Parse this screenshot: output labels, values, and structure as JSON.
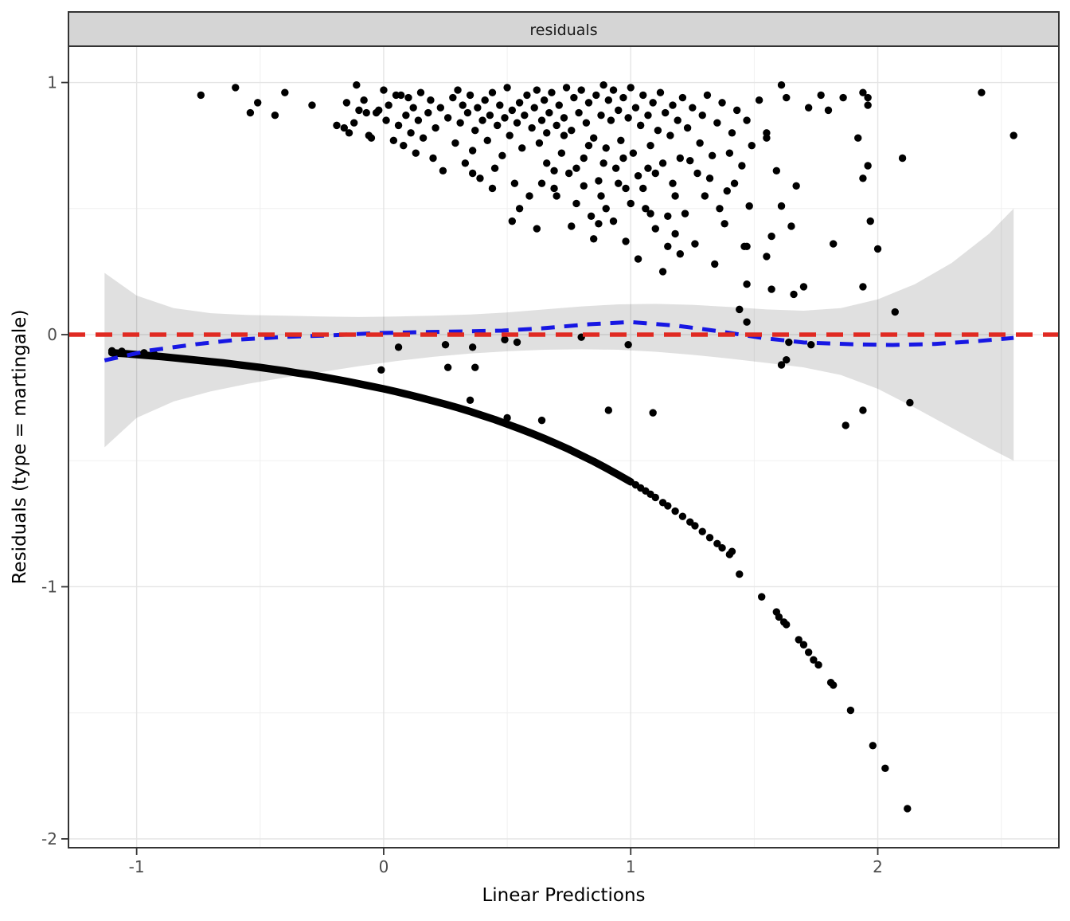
{
  "chart_data": {
    "type": "scatter",
    "strip_label": "residuals",
    "xlabel": "Linear Predictions",
    "ylabel": "Residuals (type = martingale)",
    "xlim": [
      -1.276,
      2.733
    ],
    "ylim": [
      -2.035,
      1.144
    ],
    "x_ticks": {
      "values": [
        -1,
        0,
        1,
        2
      ],
      "labels": [
        "-1",
        "0",
        "1",
        "2"
      ]
    },
    "y_ticks": {
      "values": [
        1,
        0,
        -1,
        -2
      ],
      "labels": [
        "1",
        "0",
        "-1",
        "-2"
      ]
    },
    "x_minor": [
      -0.5,
      0.5,
      1.5,
      2.5
    ],
    "y_minor": [
      0.5,
      -0.5,
      -1.5
    ],
    "grid": true,
    "legend_position": "none",
    "colors": {
      "reference": "#E02A22",
      "smooth": "#1717E3",
      "points": "#000000",
      "ribbon": "rgba(0,0,0,0.12)",
      "strip_bg": "#D5D5D5",
      "panel_border": "#333333",
      "grid_major": "#E4E4E4",
      "grid_minor": "#F0F0F0",
      "tick_label": "#4D4D4D"
    },
    "reference_line": {
      "y": 0,
      "style": "dashed"
    },
    "smooth_line": {
      "style": "dashed",
      "points": [
        [
          -1.13,
          -0.102
        ],
        [
          -0.95,
          -0.063
        ],
        [
          -0.76,
          -0.038
        ],
        [
          -0.58,
          -0.019
        ],
        [
          -0.4,
          -0.009
        ],
        [
          -0.22,
          -0.003
        ],
        [
          -0.03,
          0.006
        ],
        [
          0.15,
          0.01
        ],
        [
          0.33,
          0.013
        ],
        [
          0.48,
          0.016
        ],
        [
          0.64,
          0.025
        ],
        [
          0.83,
          0.041
        ],
        [
          1.0,
          0.05
        ],
        [
          1.19,
          0.035
        ],
        [
          1.36,
          0.013
        ],
        [
          1.53,
          -0.013
        ],
        [
          1.7,
          -0.031
        ],
        [
          1.89,
          -0.038
        ],
        [
          2.06,
          -0.041
        ],
        [
          2.23,
          -0.037
        ],
        [
          2.4,
          -0.026
        ],
        [
          2.55,
          -0.013
        ]
      ]
    },
    "ribbon": {
      "x": [
        -1.13,
        -1.0,
        -0.85,
        -0.7,
        -0.55,
        -0.4,
        -0.25,
        -0.1,
        0.05,
        0.2,
        0.35,
        0.5,
        0.65,
        0.8,
        0.95,
        1.1,
        1.25,
        1.4,
        1.55,
        1.7,
        1.85,
        2.0,
        2.15,
        2.3,
        2.45,
        2.55
      ],
      "upper": [
        0.245,
        0.155,
        0.105,
        0.085,
        0.078,
        0.075,
        0.072,
        0.07,
        0.072,
        0.075,
        0.08,
        0.088,
        0.1,
        0.112,
        0.12,
        0.122,
        0.118,
        0.11,
        0.1,
        0.095,
        0.105,
        0.14,
        0.2,
        0.285,
        0.4,
        0.5
      ],
      "lower": [
        -0.447,
        -0.33,
        -0.265,
        -0.225,
        -0.195,
        -0.17,
        -0.148,
        -0.125,
        -0.105,
        -0.088,
        -0.075,
        -0.066,
        -0.06,
        -0.058,
        -0.06,
        -0.068,
        -0.08,
        -0.095,
        -0.112,
        -0.13,
        -0.16,
        -0.215,
        -0.29,
        -0.37,
        -0.45,
        -0.5
      ]
    },
    "censored_curve": {
      "band": [
        [
          -1.1,
          -0.072
        ],
        [
          -1.05,
          -0.075
        ],
        [
          -1.0,
          -0.079
        ],
        [
          -0.95,
          -0.083
        ],
        [
          -0.9,
          -0.087
        ],
        [
          -0.85,
          -0.092
        ],
        [
          -0.8,
          -0.097
        ],
        [
          -0.75,
          -0.102
        ],
        [
          -0.7,
          -0.107
        ],
        [
          -0.65,
          -0.112
        ],
        [
          -0.6,
          -0.118
        ],
        [
          -0.55,
          -0.124
        ],
        [
          -0.5,
          -0.13
        ],
        [
          -0.45,
          -0.137
        ],
        [
          -0.4,
          -0.144
        ],
        [
          -0.35,
          -0.152
        ],
        [
          -0.3,
          -0.159
        ],
        [
          -0.25,
          -0.167
        ],
        [
          -0.2,
          -0.176
        ],
        [
          -0.15,
          -0.185
        ],
        [
          -0.1,
          -0.195
        ],
        [
          -0.05,
          -0.205
        ],
        [
          0.0,
          -0.215
        ],
        [
          0.05,
          -0.226
        ],
        [
          0.1,
          -0.238
        ],
        [
          0.15,
          -0.25
        ],
        [
          0.2,
          -0.263
        ],
        [
          0.25,
          -0.276
        ],
        [
          0.3,
          -0.29
        ],
        [
          0.35,
          -0.305
        ],
        [
          0.4,
          -0.321
        ],
        [
          0.45,
          -0.337
        ],
        [
          0.5,
          -0.355
        ],
        [
          0.55,
          -0.373
        ],
        [
          0.6,
          -0.392
        ],
        [
          0.65,
          -0.412
        ],
        [
          0.7,
          -0.433
        ],
        [
          0.75,
          -0.455
        ],
        [
          0.8,
          -0.479
        ],
        [
          0.85,
          -0.503
        ],
        [
          0.9,
          -0.529
        ],
        [
          0.95,
          -0.556
        ],
        [
          1.0,
          -0.584
        ]
      ],
      "sparse": [
        [
          -1.1,
          -0.064
        ],
        [
          -1.06,
          -0.066
        ],
        [
          -0.97,
          -0.072
        ],
        [
          -0.93,
          -0.076
        ],
        [
          1.02,
          -0.596
        ],
        [
          1.04,
          -0.608
        ],
        [
          1.06,
          -0.62
        ],
        [
          1.08,
          -0.633
        ],
        [
          1.1,
          -0.646
        ],
        [
          1.13,
          -0.666
        ],
        [
          1.15,
          -0.679
        ],
        [
          1.18,
          -0.7
        ],
        [
          1.21,
          -0.721
        ],
        [
          1.24,
          -0.743
        ],
        [
          1.26,
          -0.758
        ],
        [
          1.29,
          -0.781
        ],
        [
          1.32,
          -0.805
        ],
        [
          1.35,
          -0.829
        ],
        [
          1.37,
          -0.846
        ],
        [
          1.4,
          -0.872
        ],
        [
          1.41,
          -0.86
        ],
        [
          1.44,
          -0.95
        ],
        [
          1.53,
          -1.04
        ],
        [
          1.59,
          -1.1
        ],
        [
          1.6,
          -1.12
        ],
        [
          1.62,
          -1.14
        ],
        [
          1.63,
          -1.15
        ],
        [
          1.68,
          -1.21
        ],
        [
          1.7,
          -1.23
        ],
        [
          1.72,
          -1.26
        ],
        [
          1.74,
          -1.29
        ],
        [
          1.76,
          -1.31
        ],
        [
          1.81,
          -1.38
        ],
        [
          1.82,
          -1.39
        ],
        [
          1.89,
          -1.49
        ],
        [
          1.98,
          -1.63
        ],
        [
          2.03,
          -1.72
        ],
        [
          2.12,
          -1.88
        ]
      ]
    },
    "event_points": [
      [
        -0.74,
        0.95
      ],
      [
        -0.6,
        0.98
      ],
      [
        -0.54,
        0.88
      ],
      [
        -0.51,
        0.92
      ],
      [
        -0.44,
        0.87
      ],
      [
        -0.4,
        0.96
      ],
      [
        -0.29,
        0.91
      ],
      [
        -0.19,
        0.83
      ],
      [
        -0.16,
        0.82
      ],
      [
        -0.15,
        0.92
      ],
      [
        -0.14,
        0.8
      ],
      [
        -0.12,
        0.84
      ],
      [
        -0.11,
        0.99
      ],
      [
        -0.1,
        0.89
      ],
      [
        -0.08,
        0.93
      ],
      [
        -0.07,
        0.88
      ],
      [
        -0.06,
        0.79
      ],
      [
        -0.05,
        0.78
      ],
      [
        -0.03,
        0.88
      ],
      [
        -0.02,
        0.89
      ],
      [
        0.0,
        0.97
      ],
      [
        0.01,
        0.85
      ],
      [
        0.02,
        0.91
      ],
      [
        0.04,
        0.77
      ],
      [
        0.05,
        0.95
      ],
      [
        0.06,
        0.83
      ],
      [
        0.07,
        0.95
      ],
      [
        0.08,
        0.75
      ],
      [
        0.09,
        0.87
      ],
      [
        0.1,
        0.94
      ],
      [
        0.11,
        0.8
      ],
      [
        0.12,
        0.9
      ],
      [
        0.13,
        0.72
      ],
      [
        0.14,
        0.85
      ],
      [
        0.15,
        0.96
      ],
      [
        0.16,
        0.78
      ],
      [
        0.18,
        0.88
      ],
      [
        0.19,
        0.93
      ],
      [
        0.2,
        0.7
      ],
      [
        0.21,
        0.82
      ],
      [
        0.23,
        0.9
      ],
      [
        0.24,
        0.65
      ],
      [
        0.26,
        0.86
      ],
      [
        0.28,
        0.94
      ],
      [
        0.29,
        0.76
      ],
      [
        0.3,
        0.97
      ],
      [
        0.31,
        0.84
      ],
      [
        0.32,
        0.91
      ],
      [
        0.33,
        0.68
      ],
      [
        0.34,
        0.88
      ],
      [
        0.35,
        0.95
      ],
      [
        0.36,
        0.73
      ],
      [
        0.37,
        0.81
      ],
      [
        0.38,
        0.9
      ],
      [
        0.39,
        0.62
      ],
      [
        0.4,
        0.85
      ],
      [
        0.41,
        0.93
      ],
      [
        0.42,
        0.77
      ],
      [
        0.43,
        0.87
      ],
      [
        0.44,
        0.96
      ],
      [
        0.45,
        0.66
      ],
      [
        0.46,
        0.83
      ],
      [
        0.47,
        0.91
      ],
      [
        0.48,
        0.71
      ],
      [
        0.49,
        0.86
      ],
      [
        0.5,
        0.98
      ],
      [
        0.51,
        0.79
      ],
      [
        0.52,
        0.89
      ],
      [
        0.53,
        0.6
      ],
      [
        0.54,
        0.84
      ],
      [
        0.55,
        0.92
      ],
      [
        0.56,
        0.74
      ],
      [
        0.57,
        0.87
      ],
      [
        0.58,
        0.95
      ],
      [
        0.59,
        0.55
      ],
      [
        0.6,
        0.82
      ],
      [
        0.55,
        0.5
      ],
      [
        0.44,
        0.58
      ],
      [
        0.36,
        0.64
      ],
      [
        0.52,
        0.45
      ],
      [
        0.61,
        0.9
      ],
      [
        0.62,
        0.97
      ],
      [
        0.63,
        0.76
      ],
      [
        0.64,
        0.85
      ],
      [
        0.65,
        0.93
      ],
      [
        0.66,
        0.68
      ],
      [
        0.67,
        0.88
      ],
      [
        0.68,
        0.96
      ],
      [
        0.69,
        0.58
      ],
      [
        0.7,
        0.83
      ],
      [
        0.71,
        0.91
      ],
      [
        0.72,
        0.72
      ],
      [
        0.73,
        0.86
      ],
      [
        0.74,
        0.98
      ],
      [
        0.75,
        0.64
      ],
      [
        0.76,
        0.81
      ],
      [
        0.77,
        0.94
      ],
      [
        0.78,
        0.52
      ],
      [
        0.79,
        0.88
      ],
      [
        0.8,
        0.97
      ],
      [
        0.81,
        0.7
      ],
      [
        0.82,
        0.84
      ],
      [
        0.83,
        0.92
      ],
      [
        0.84,
        0.47
      ],
      [
        0.85,
        0.78
      ],
      [
        0.86,
        0.95
      ],
      [
        0.87,
        0.61
      ],
      [
        0.88,
        0.87
      ],
      [
        0.89,
        0.99
      ],
      [
        0.9,
        0.74
      ],
      [
        0.62,
        0.42
      ],
      [
        0.7,
        0.55
      ],
      [
        0.78,
        0.66
      ],
      [
        0.85,
        0.38
      ],
      [
        0.88,
        0.55
      ],
      [
        0.66,
        0.8
      ],
      [
        0.73,
        0.79
      ],
      [
        0.81,
        0.59
      ],
      [
        0.87,
        0.44
      ],
      [
        0.89,
        0.68
      ],
      [
        0.64,
        0.6
      ],
      [
        0.76,
        0.43
      ],
      [
        0.83,
        0.75
      ],
      [
        0.69,
        0.65
      ],
      [
        0.9,
        0.5
      ],
      [
        0.91,
        0.93
      ],
      [
        0.92,
        0.85
      ],
      [
        0.93,
        0.97
      ],
      [
        0.94,
        0.66
      ],
      [
        0.95,
        0.89
      ],
      [
        0.96,
        0.77
      ],
      [
        0.97,
        0.94
      ],
      [
        0.98,
        0.58
      ],
      [
        0.99,
        0.86
      ],
      [
        1.0,
        0.98
      ],
      [
        1.01,
        0.72
      ],
      [
        1.02,
        0.9
      ],
      [
        1.03,
        0.63
      ],
      [
        1.04,
        0.83
      ],
      [
        1.05,
        0.95
      ],
      [
        1.06,
        0.5
      ],
      [
        1.07,
        0.87
      ],
      [
        1.08,
        0.75
      ],
      [
        1.09,
        0.92
      ],
      [
        1.1,
        0.42
      ],
      [
        1.11,
        0.81
      ],
      [
        1.12,
        0.96
      ],
      [
        1.13,
        0.68
      ],
      [
        1.14,
        0.88
      ],
      [
        1.15,
        0.35
      ],
      [
        1.16,
        0.79
      ],
      [
        1.17,
        0.91
      ],
      [
        1.18,
        0.55
      ],
      [
        1.19,
        0.85
      ],
      [
        1.2,
        0.7
      ],
      [
        0.93,
        0.45
      ],
      [
        0.98,
        0.37
      ],
      [
        1.03,
        0.3
      ],
      [
        1.08,
        0.48
      ],
      [
        1.13,
        0.25
      ],
      [
        1.18,
        0.4
      ],
      [
        0.95,
        0.6
      ],
      [
        1.0,
        0.52
      ],
      [
        1.05,
        0.58
      ],
      [
        1.1,
        0.64
      ],
      [
        1.15,
        0.47
      ],
      [
        1.2,
        0.32
      ],
      [
        0.97,
        0.7
      ],
      [
        1.07,
        0.66
      ],
      [
        1.17,
        0.6
      ],
      [
        1.21,
        0.94
      ],
      [
        1.23,
        0.82
      ],
      [
        1.25,
        0.9
      ],
      [
        1.27,
        0.64
      ],
      [
        1.29,
        0.87
      ],
      [
        1.31,
        0.95
      ],
      [
        1.33,
        0.71
      ],
      [
        1.35,
        0.84
      ],
      [
        1.37,
        0.92
      ],
      [
        1.39,
        0.57
      ],
      [
        1.41,
        0.8
      ],
      [
        1.43,
        0.89
      ],
      [
        1.45,
        0.67
      ],
      [
        1.47,
        0.85
      ],
      [
        1.49,
        0.75
      ],
      [
        1.22,
        0.48
      ],
      [
        1.26,
        0.36
      ],
      [
        1.3,
        0.55
      ],
      [
        1.34,
        0.28
      ],
      [
        1.38,
        0.44
      ],
      [
        1.42,
        0.6
      ],
      [
        1.46,
        0.35
      ],
      [
        1.36,
        0.5
      ],
      [
        1.47,
        0.2
      ],
      [
        1.44,
        0.1
      ],
      [
        1.28,
        0.76
      ],
      [
        1.32,
        0.62
      ],
      [
        1.4,
        0.72
      ],
      [
        1.48,
        0.51
      ],
      [
        1.24,
        0.69
      ],
      [
        1.52,
        0.93
      ],
      [
        1.61,
        0.99
      ],
      [
        1.63,
        0.94
      ],
      [
        1.72,
        0.9
      ],
      [
        1.77,
        0.95
      ],
      [
        1.8,
        0.89
      ],
      [
        1.86,
        0.94
      ],
      [
        1.94,
        0.96
      ],
      [
        1.96,
        0.94
      ],
      [
        1.96,
        0.91
      ],
      [
        1.55,
        0.8
      ],
      [
        1.55,
        0.78
      ],
      [
        1.92,
        0.78
      ],
      [
        1.96,
        0.67
      ],
      [
        1.59,
        0.65
      ],
      [
        1.94,
        0.62
      ],
      [
        1.67,
        0.59
      ],
      [
        1.61,
        0.51
      ],
      [
        1.65,
        0.43
      ],
      [
        1.57,
        0.39
      ],
      [
        1.82,
        0.36
      ],
      [
        1.55,
        0.31
      ],
      [
        1.7,
        0.19
      ],
      [
        1.94,
        0.19
      ],
      [
        1.57,
        0.18
      ],
      [
        1.66,
        0.16
      ],
      [
        1.47,
        0.35
      ],
      [
        1.47,
        0.05
      ],
      [
        2.0,
        0.34
      ],
      [
        2.07,
        0.09
      ],
      [
        2.1,
        0.7
      ],
      [
        2.42,
        0.96
      ],
      [
        2.55,
        0.79
      ],
      [
        1.97,
        0.45
      ],
      [
        0.06,
        -0.05
      ],
      [
        0.25,
        -0.04
      ],
      [
        0.36,
        -0.05
      ],
      [
        0.49,
        -0.02
      ],
      [
        0.54,
        -0.03
      ],
      [
        0.8,
        -0.01
      ],
      [
        0.99,
        -0.04
      ],
      [
        -0.01,
        -0.14
      ],
      [
        0.26,
        -0.13
      ],
      [
        0.37,
        -0.13
      ],
      [
        0.35,
        -0.26
      ],
      [
        0.5,
        -0.33
      ],
      [
        0.64,
        -0.34
      ],
      [
        0.91,
        -0.3
      ],
      [
        1.09,
        -0.31
      ],
      [
        1.64,
        -0.03
      ],
      [
        1.73,
        -0.04
      ],
      [
        1.63,
        -0.1
      ],
      [
        1.61,
        -0.12
      ],
      [
        2.13,
        -0.27
      ],
      [
        1.94,
        -0.3
      ],
      [
        1.87,
        -0.36
      ]
    ]
  }
}
